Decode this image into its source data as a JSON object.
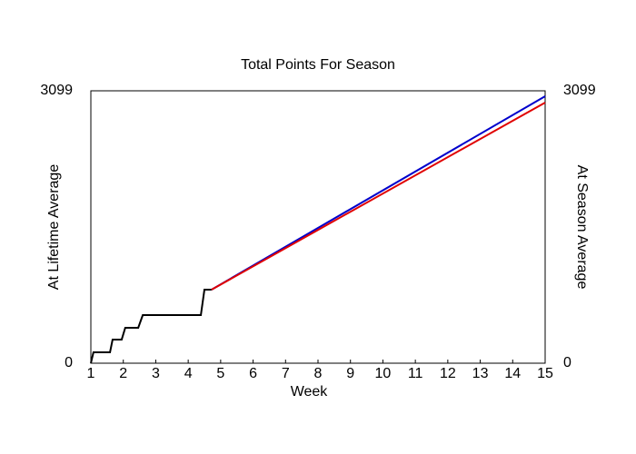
{
  "chart_data": {
    "type": "line",
    "title": "Total Points For Season",
    "x_label": "Week",
    "y_label": "At Lifetime Average",
    "y_label_color": "#0000cc",
    "y2_label": "At Season Average",
    "y2_label_color": "#e00000",
    "xlim": [
      1,
      15
    ],
    "xticks": [
      1,
      2,
      3,
      4,
      5,
      6,
      7,
      8,
      9,
      10,
      11,
      12,
      13,
      14,
      15
    ],
    "ylim": [
      0,
      3099
    ],
    "yticks": [
      0,
      3099
    ],
    "y2lim": [
      0,
      3099
    ],
    "y2ticks": [
      0,
      3099
    ],
    "series": [
      {
        "color": "#000000",
        "x": [
          1,
          1.08,
          1.59,
          1.67,
          1.95,
          2.06,
          2.46,
          2.6,
          4.39,
          4.5,
          4.72
        ],
        "values": [
          0,
          124,
          124,
          269,
          269,
          403,
          403,
          547,
          547,
          837,
          837
        ]
      },
      {
        "color": "#0000cc",
        "x": [
          4.72,
          15
        ],
        "values": [
          837,
          3037
        ]
      },
      {
        "color": "#e00000",
        "axis": "y2",
        "x": [
          4.72,
          15
        ],
        "values": [
          837,
          2965
        ]
      }
    ]
  }
}
